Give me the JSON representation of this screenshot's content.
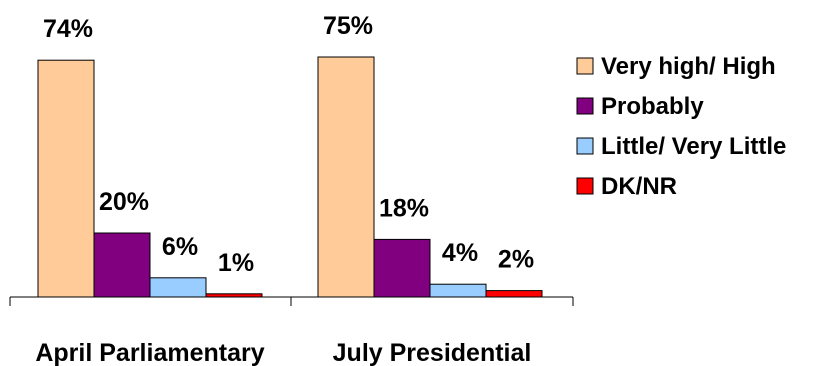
{
  "chart_data": {
    "type": "bar",
    "categories": [
      "April Parliamentary",
      "July Presidential"
    ],
    "series": [
      {
        "name": "Very high/ High",
        "color": "#FFCC99",
        "values": [
          74,
          75
        ],
        "labels": [
          "74%",
          "75%"
        ]
      },
      {
        "name": "Probably",
        "color": "#800080",
        "values": [
          20,
          18
        ],
        "labels": [
          "20%",
          "18%"
        ]
      },
      {
        "name": "Little/ Very Little",
        "color": "#99CCFF",
        "values": [
          6,
          4
        ],
        "labels": [
          "6%",
          "4%"
        ]
      },
      {
        "name": "DK/NR",
        "color": "#FF0000",
        "values": [
          1,
          2
        ],
        "labels": [
          "1%",
          "2%"
        ]
      }
    ],
    "ylim": [
      0,
      80
    ],
    "grid": false,
    "legend": "right"
  }
}
